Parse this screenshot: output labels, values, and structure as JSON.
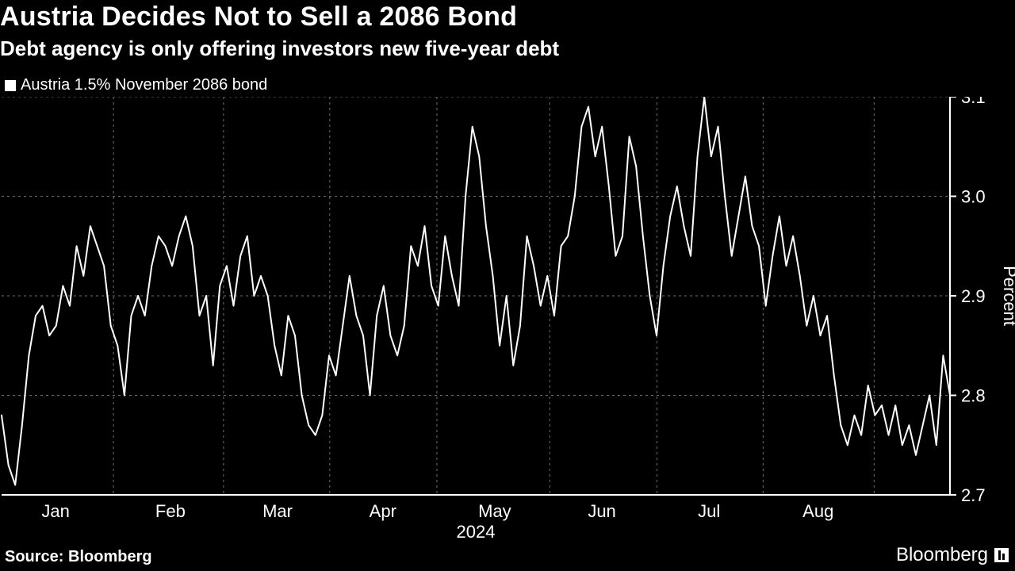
{
  "title": "Austria Decides Not to Sell a 2086 Bond",
  "subtitle": "Debt agency is only offering investors new five-year debt",
  "legend": {
    "label": "Austria 1.5% November 2086 bond"
  },
  "source": "Source: Bloomberg",
  "brand": "Bloomberg",
  "chart": {
    "type": "line",
    "background_color": "#000000",
    "line_color": "#ffffff",
    "line_width": 2,
    "grid_color": "#6f6f6f",
    "grid_dash": "3,4",
    "axis_color": "#ffffff",
    "tick_fontsize": 22,
    "axis_label_fontsize": 22,
    "y_axis": {
      "label": "Percent",
      "lim": [
        2.7,
        3.1
      ],
      "ticks": [
        2.7,
        2.8,
        2.9,
        3.0,
        3.1
      ],
      "tick_labels": [
        "2.7",
        "2.8",
        "2.9",
        "3.0",
        "3.1"
      ],
      "side": "right"
    },
    "x_axis": {
      "year_label": "2024",
      "month_ticks": [
        "Jan",
        "Feb",
        "Mar",
        "Apr",
        "May",
        "Jun",
        "Jul",
        "Aug"
      ],
      "month_positions": [
        0.057,
        0.178,
        0.291,
        0.402,
        0.52,
        0.633,
        0.746,
        0.861
      ],
      "gridline_positions": [
        0.118,
        0.234,
        0.346,
        0.459,
        0.578,
        0.691,
        0.803,
        0.92
      ]
    },
    "series": {
      "name": "Austria 1.5% November 2086 bond",
      "values": [
        2.78,
        2.73,
        2.71,
        2.77,
        2.84,
        2.88,
        2.89,
        2.86,
        2.87,
        2.91,
        2.89,
        2.95,
        2.92,
        2.97,
        2.95,
        2.93,
        2.87,
        2.85,
        2.8,
        2.88,
        2.9,
        2.88,
        2.93,
        2.96,
        2.95,
        2.93,
        2.96,
        2.98,
        2.95,
        2.88,
        2.9,
        2.83,
        2.91,
        2.93,
        2.89,
        2.94,
        2.96,
        2.9,
        2.92,
        2.9,
        2.85,
        2.82,
        2.88,
        2.86,
        2.8,
        2.77,
        2.76,
        2.78,
        2.84,
        2.82,
        2.87,
        2.92,
        2.88,
        2.86,
        2.8,
        2.88,
        2.91,
        2.86,
        2.84,
        2.87,
        2.95,
        2.93,
        2.97,
        2.91,
        2.89,
        2.96,
        2.92,
        2.89,
        3.0,
        3.07,
        3.04,
        2.97,
        2.92,
        2.85,
        2.9,
        2.83,
        2.87,
        2.96,
        2.93,
        2.89,
        2.92,
        2.88,
        2.95,
        2.96,
        3.0,
        3.07,
        3.09,
        3.04,
        3.07,
        3.01,
        2.94,
        2.96,
        3.06,
        3.03,
        2.96,
        2.9,
        2.86,
        2.93,
        2.98,
        3.01,
        2.97,
        2.94,
        3.04,
        3.1,
        3.04,
        3.07,
        3.0,
        2.94,
        2.98,
        3.02,
        2.97,
        2.95,
        2.89,
        2.94,
        2.98,
        2.93,
        2.96,
        2.92,
        2.87,
        2.9,
        2.86,
        2.88,
        2.82,
        2.77,
        2.75,
        2.78,
        2.76,
        2.81,
        2.78,
        2.79,
        2.76,
        2.79,
        2.75,
        2.77,
        2.74,
        2.77,
        2.8,
        2.75,
        2.84,
        2.8
      ]
    }
  }
}
